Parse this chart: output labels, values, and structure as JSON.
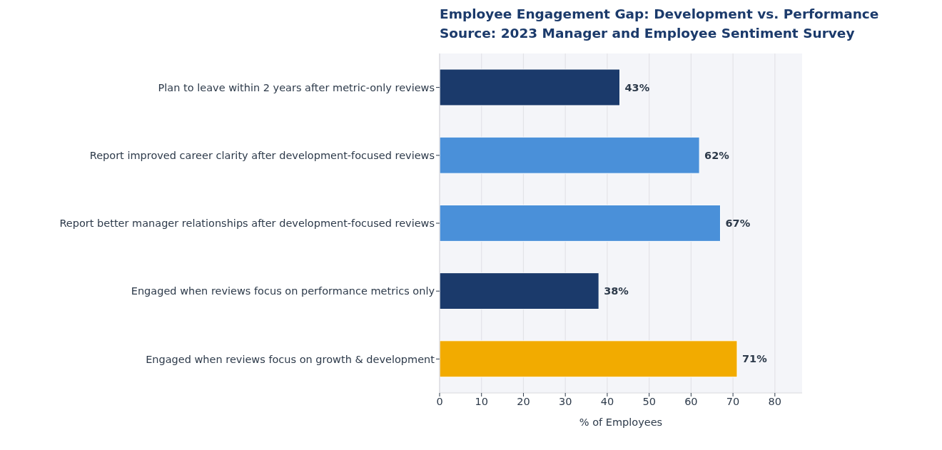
{
  "chart_data": {
    "type": "bar",
    "orientation": "horizontal",
    "title": "Employee Engagement Gap: Development vs. Performance",
    "subtitle": "Source: 2023 Manager and Employee Sentiment Survey",
    "xlabel": "% of Employees",
    "categories": [
      "Plan to leave within 2 years after metric-only reviews",
      "Report improved career clarity after development-focused reviews",
      "Report better manager relationships after development-focused reviews",
      "Engaged when reviews focus on performance metrics only",
      "Engaged when reviews focus on growth & development"
    ],
    "values": [
      43,
      62,
      67,
      38,
      71
    ],
    "colors": [
      "#1b3a6b",
      "#4a90d9",
      "#4a90d9",
      "#1b3a6b",
      "#f2ab00"
    ],
    "value_labels": [
      "43%",
      "62%",
      "67%",
      "38%",
      "71%"
    ],
    "xlim": [
      0,
      86.5
    ],
    "xticks": [
      0,
      10,
      20,
      30,
      40,
      50,
      60,
      70,
      80
    ],
    "grid": "x"
  }
}
